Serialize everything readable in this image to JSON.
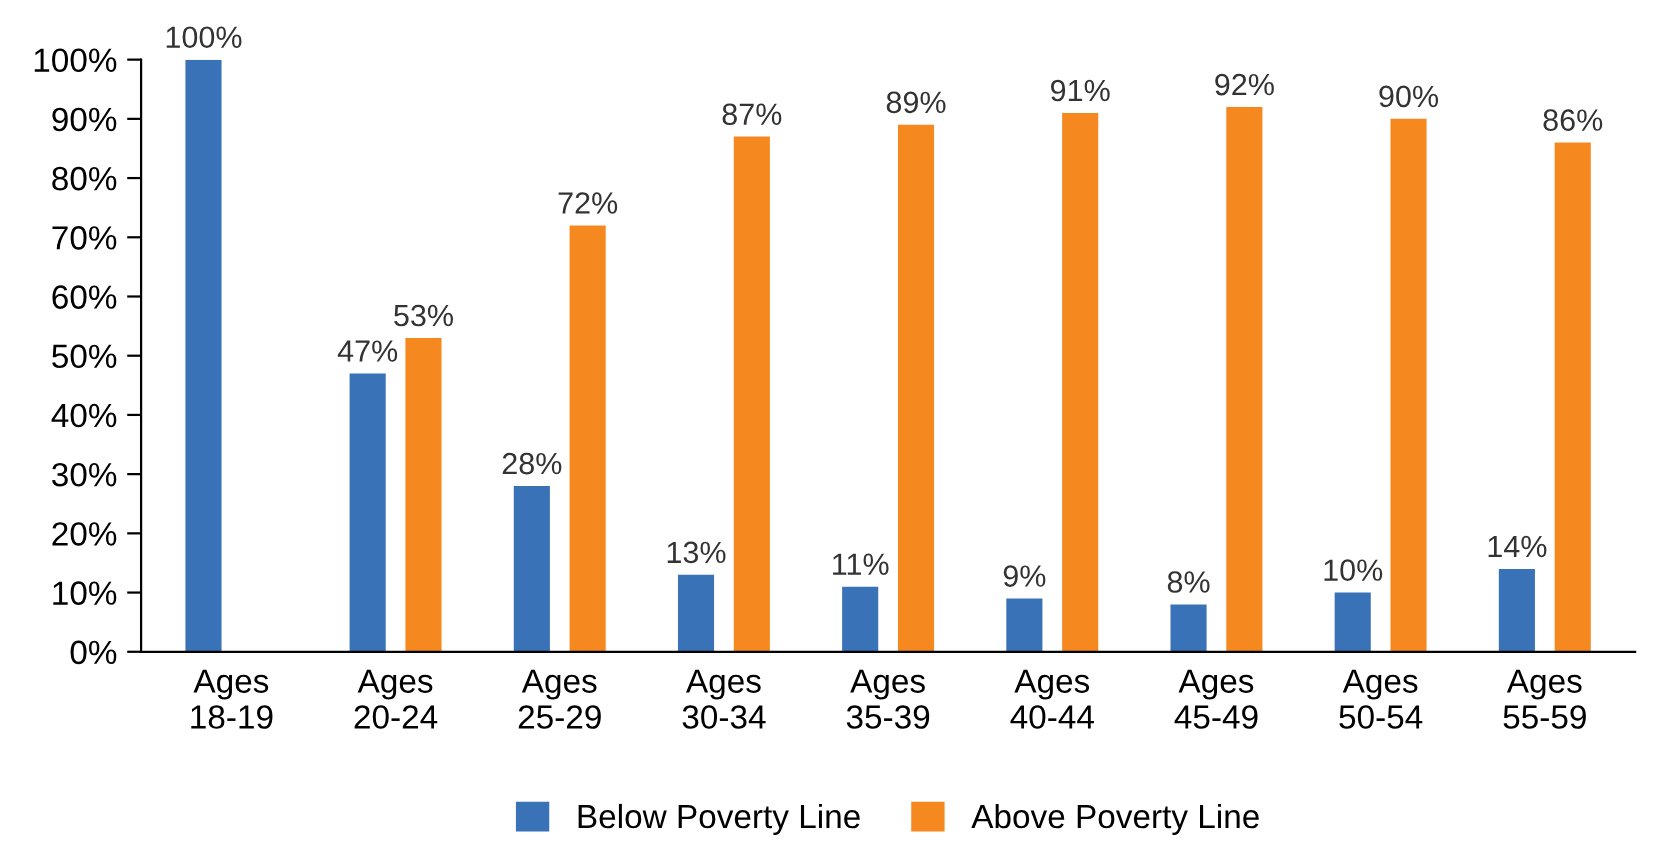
{
  "chart_data": {
    "type": "bar",
    "categories": [
      "Ages\n18-19",
      "Ages\n20-24",
      "Ages\n25-29",
      "Ages\n30-34",
      "Ages\n35-39",
      "Ages\n40-44",
      "Ages\n45-49",
      "Ages\n50-54",
      "Ages\n55-59"
    ],
    "series": [
      {
        "name": "Below Poverty Line",
        "color": "#3a72b8",
        "values": [
          100,
          47,
          28,
          13,
          11,
          9,
          8,
          10,
          14
        ],
        "value_labels": [
          "100%",
          "47%",
          "28%",
          "13%",
          "11%",
          "9%",
          "8%",
          "10%",
          "14%"
        ]
      },
      {
        "name": "Above Poverty Line",
        "color": "#f5891f",
        "values": [
          null,
          53,
          72,
          87,
          89,
          91,
          92,
          90,
          86
        ],
        "value_labels": [
          null,
          "53%",
          "72%",
          "87%",
          "89%",
          "91%",
          "92%",
          "90%",
          "86%"
        ]
      }
    ],
    "ylim": [
      0,
      100
    ],
    "yticks": [
      {
        "value": 0,
        "label": "0%"
      },
      {
        "value": 10,
        "label": "10%"
      },
      {
        "value": 20,
        "label": "20%"
      },
      {
        "value": 30,
        "label": "30%"
      },
      {
        "value": 40,
        "label": "40%"
      },
      {
        "value": 50,
        "label": "50%"
      },
      {
        "value": 60,
        "label": "60%"
      },
      {
        "value": 70,
        "label": "70%"
      },
      {
        "value": 80,
        "label": "80%"
      },
      {
        "value": 90,
        "label": "90%"
      },
      {
        "value": 100,
        "label": "100%"
      }
    ],
    "grid": false,
    "legend": "bottom"
  }
}
